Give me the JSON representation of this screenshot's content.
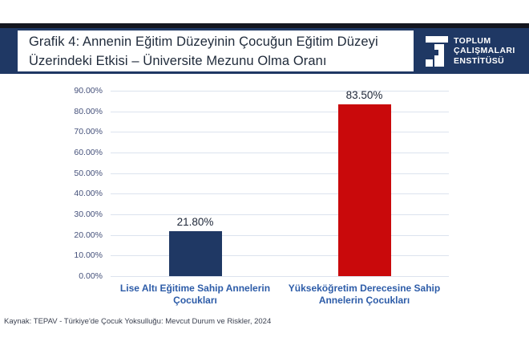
{
  "header": {
    "title_line1": "Grafik 4: Annenin Eğitim Düzeyinin Çocuğun Eğitim Düzeyi",
    "title_line2": "Üzerindeki Etkisi – Üniversite Mezunu Olma Oranı",
    "logo": {
      "line1": "TOPLUM",
      "line2": "ÇALIŞMALARI",
      "line3": "ENSTİTÜSÜ"
    }
  },
  "chart_data": {
    "type": "bar",
    "title": "Grafik 4: Annenin Eğitim Düzeyinin Çocuğun Eğitim Düzeyi Üzerindeki Etkisi – Üniversite Mezunu Olma Oranı",
    "categories": [
      "Lise Altı Eğitime Sahip Annelerin Çocukları",
      "Yükseköğretim Derecesine Sahip Annelerin Çocukları"
    ],
    "category_lines": [
      [
        "Lise Altı Eğitime Sahip Annelerin",
        "Çocukları"
      ],
      [
        "Yükseköğretim Derecesine Sahip",
        "Annelerin Çocukları"
      ]
    ],
    "values": [
      21.8,
      83.5
    ],
    "value_labels": [
      "21.80%",
      "83.50%"
    ],
    "bar_colors": [
      "#1F3864",
      "#C9090B"
    ],
    "ylim": [
      0,
      90
    ],
    "ytick_step": 10,
    "yticks": [
      "0.00%",
      "10.00%",
      "20.00%",
      "30.00%",
      "40.00%",
      "50.00%",
      "60.00%",
      "70.00%",
      "80.00%",
      "90.00%"
    ],
    "grid": true,
    "legend": "none",
    "xlabel": "",
    "ylabel": ""
  },
  "source": "Kaynak: TEPAV - Türkiye'de Çocuk Yoksulluğu: Mevcut Durum ve Riskler, 2024",
  "colors": {
    "header_navy": "#1F3864",
    "top_strip": "#14161f",
    "bar_navy": "#1F3864",
    "bar_red": "#C9090B",
    "gridline": "#dce3ee",
    "axis_label": "#44507a",
    "category_label": "#2d5ca8",
    "value_label": "#20293a",
    "logo_text": "#ffffff"
  }
}
